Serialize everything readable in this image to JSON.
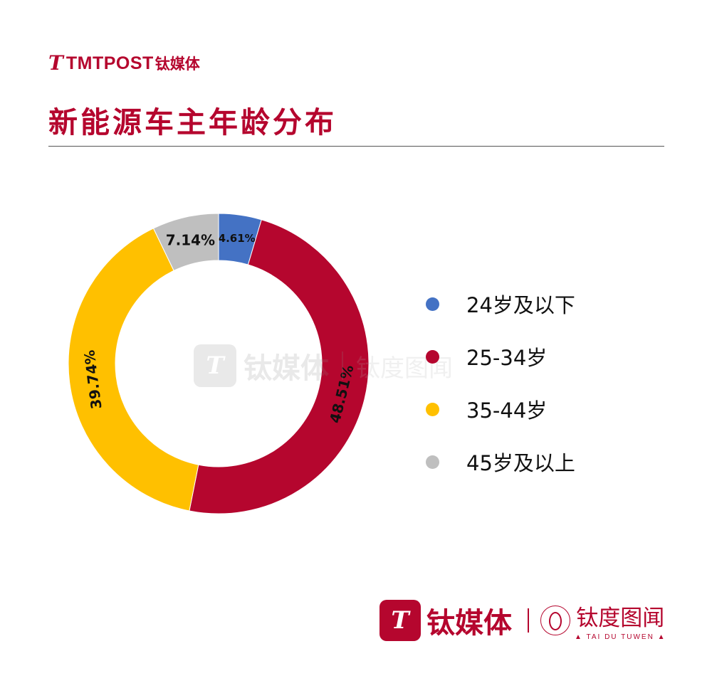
{
  "header": {
    "logo_mark": "T",
    "brand_en": "TMTPOST",
    "brand_cn": "钛媒体",
    "title": "新能源车主年龄分布"
  },
  "watermark": {
    "brand_cn": "钛媒体",
    "secondary": "钛度图闻"
  },
  "footer": {
    "logo_mark": "T",
    "brand_cn": "钛媒体",
    "secondary": "钛度图闻",
    "secondary_sub": "▲ TAI DU TUWEN ▲"
  },
  "chart_data": {
    "type": "pie",
    "donut": true,
    "title": "新能源车主年龄分布",
    "legend_position": "right",
    "categories": [
      "24岁及以下",
      "25-34岁",
      "35-44岁",
      "45岁及以上"
    ],
    "values": [
      4.61,
      48.51,
      39.74,
      7.14
    ],
    "labels": [
      "4.61%",
      "48.51%",
      "39.74%",
      "7.14%"
    ],
    "colors": [
      "#4472c4",
      "#b5062e",
      "#ffc000",
      "#bfbfbf"
    ]
  }
}
